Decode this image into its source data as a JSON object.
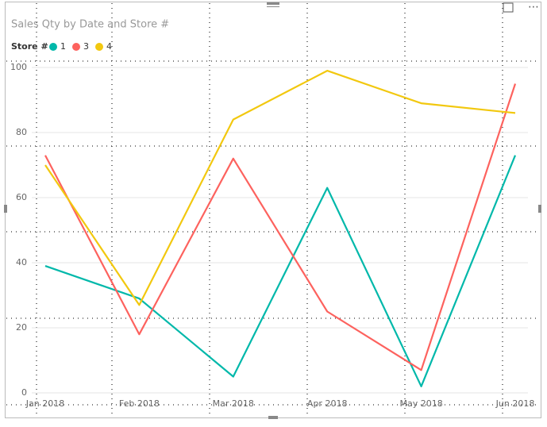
{
  "chart_data": {
    "type": "line",
    "title": "Sales Qty by Date and Store #",
    "legend_title": "Store #",
    "categories": [
      "Jan 2018",
      "Feb 2018",
      "Mar 2018",
      "Apr 2018",
      "May 2018",
      "Jun 2018"
    ],
    "series": [
      {
        "name": "1",
        "color": "#01B8AA",
        "values": [
          39,
          29,
          5,
          63,
          2,
          73
        ]
      },
      {
        "name": "3",
        "color": "#FD625E",
        "values": [
          73,
          18,
          72,
          25,
          7,
          95
        ]
      },
      {
        "name": "4",
        "color": "#F2C80F",
        "values": [
          70,
          27,
          84,
          99,
          89,
          86
        ]
      }
    ],
    "ylim": [
      0,
      100
    ],
    "yticks": [
      0,
      20,
      40,
      60,
      80,
      100
    ],
    "grid": true,
    "legend": "top-left"
  }
}
